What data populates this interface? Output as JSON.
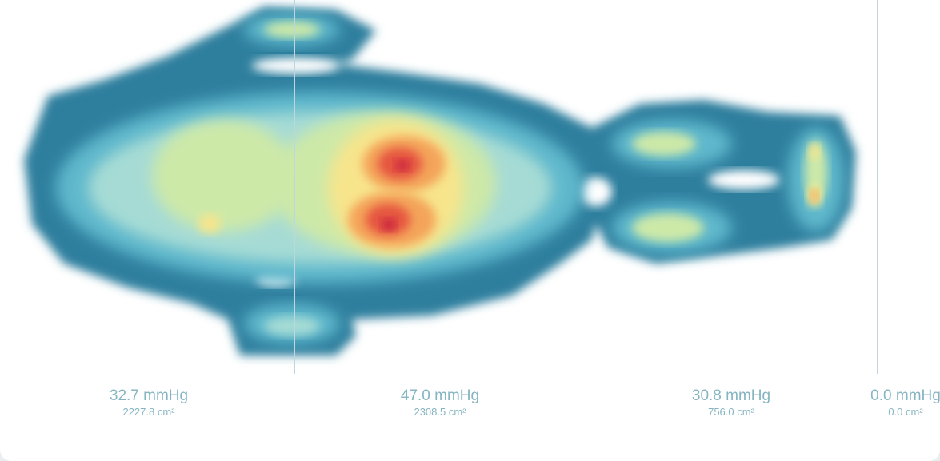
{
  "chart_data": {
    "type": "heatmap",
    "title": "",
    "zones": [
      {
        "pressure": "32.7 mmHg",
        "area": "2227.8 cm²",
        "pressure_value": 32.7,
        "area_value": 2227.8
      },
      {
        "pressure": "47.0 mmHg",
        "area": "2308.5 cm²",
        "pressure_value": 47.0,
        "area_value": 2308.5
      },
      {
        "pressure": "30.8 mmHg",
        "area": "756.0 cm²",
        "pressure_value": 30.8,
        "area_value": 756.0
      },
      {
        "pressure": "0.0 mmHg",
        "area": "0.0 cm²",
        "pressure_value": 0.0,
        "area_value": 0.0
      }
    ],
    "color_scale": [
      "#2f7f9e",
      "#5fb8cc",
      "#a6dbd5",
      "#cde9a8",
      "#f7e58c",
      "#f4a45a",
      "#e5553f",
      "#c8213f"
    ]
  }
}
